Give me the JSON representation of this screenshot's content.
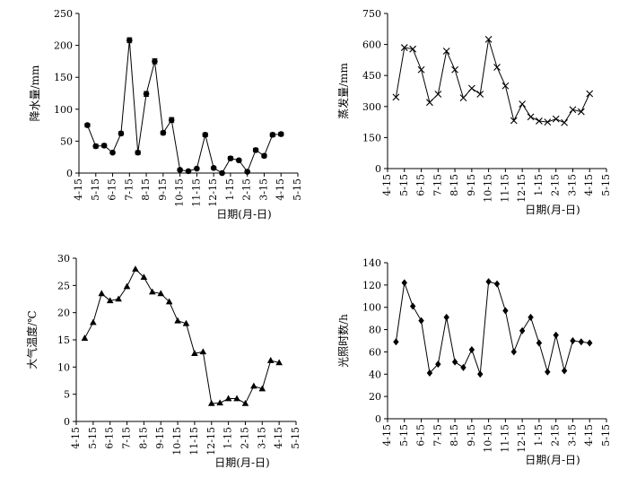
{
  "x_ticks": [
    "4-15",
    "5-15",
    "6-15",
    "7-15",
    "8-15",
    "9-15",
    "10-15",
    "11-15",
    "12-15",
    "1-15",
    "2-15",
    "3-15",
    "4-15",
    "5-15"
  ],
  "chart_data": [
    {
      "type": "line",
      "marker": "circle",
      "xlabel": "日期(月-日)",
      "ylabel": "降水量/mm",
      "ylim": [
        0,
        250
      ],
      "yticks": [
        0,
        50,
        100,
        150,
        200,
        250
      ],
      "x_month_positions": [
        0.5,
        1,
        1.5,
        2,
        2.5,
        3,
        3.5,
        4,
        4.5,
        5,
        5.5,
        6,
        6.5,
        7,
        7.5,
        8,
        8.5,
        9,
        9.5,
        10,
        10.5,
        11,
        11.5,
        12
      ],
      "values": [
        75,
        42,
        43,
        32,
        62,
        208,
        32,
        124,
        175,
        63,
        83,
        5,
        3,
        7,
        60,
        8,
        0,
        23,
        20,
        2,
        36,
        27,
        60,
        61
      ],
      "error_bars": [
        3,
        3,
        3,
        2,
        3,
        4,
        3,
        4,
        4,
        3,
        4,
        2,
        1,
        1,
        3,
        2,
        1,
        3,
        2,
        2,
        3,
        3,
        3,
        3
      ]
    },
    {
      "type": "line",
      "marker": "x",
      "xlabel": "日期(月-日)",
      "ylabel": "蒸发量/mm",
      "ylim": [
        0,
        750
      ],
      "yticks": [
        0,
        150,
        300,
        450,
        600,
        750
      ],
      "x_month_positions": [
        0.5,
        1,
        1.5,
        2,
        2.5,
        3,
        3.5,
        4,
        4.5,
        5,
        5.5,
        6,
        6.5,
        7,
        7.5,
        8,
        8.5,
        9,
        9.5,
        10,
        10.5,
        11,
        11.5,
        12
      ],
      "values": [
        345,
        585,
        578,
        478,
        320,
        360,
        568,
        478,
        342,
        388,
        360,
        625,
        490,
        400,
        232,
        312,
        250,
        230,
        225,
        240,
        222,
        285,
        275,
        362
      ]
    },
    {
      "type": "line",
      "marker": "triangle",
      "xlabel": "日期(月-日)",
      "ylabel": "大气温度/℃",
      "ylim": [
        0,
        30
      ],
      "yticks": [
        0,
        5,
        10,
        15,
        20,
        25,
        30
      ],
      "x_month_positions": [
        0.5,
        1,
        1.5,
        2,
        2.5,
        3,
        3.5,
        4,
        4.5,
        5,
        5.5,
        6,
        6.5,
        7,
        7.5,
        8,
        8.5,
        9,
        9.5,
        10,
        10.5,
        11,
        11.5,
        12
      ],
      "values": [
        15.3,
        18.2,
        23.5,
        22.2,
        22.5,
        24.8,
        28.0,
        26.5,
        23.8,
        23.5,
        22.0,
        18.5,
        18.0,
        12.5,
        12.8,
        3.3,
        3.4,
        4.2,
        4.2,
        3.3,
        6.5,
        6.0,
        11.2,
        10.8
      ]
    },
    {
      "type": "line",
      "marker": "diamond",
      "xlabel": "日期(月-日)",
      "ylabel": "光照时数/h",
      "ylim": [
        0,
        140
      ],
      "yticks": [
        0,
        20,
        40,
        60,
        80,
        100,
        120,
        140
      ],
      "x_month_positions": [
        0.5,
        1,
        1.5,
        2,
        2.5,
        3,
        3.5,
        4,
        4.5,
        5,
        5.5,
        6,
        6.5,
        7,
        7.5,
        8,
        8.5,
        9,
        9.5,
        10,
        10.5,
        11,
        11.5,
        12
      ],
      "values": [
        69,
        122,
        101,
        88,
        41,
        49,
        91,
        51,
        46,
        62,
        40,
        123,
        121,
        97,
        60,
        79,
        91,
        68,
        42,
        75,
        43,
        70,
        69,
        68
      ]
    }
  ]
}
